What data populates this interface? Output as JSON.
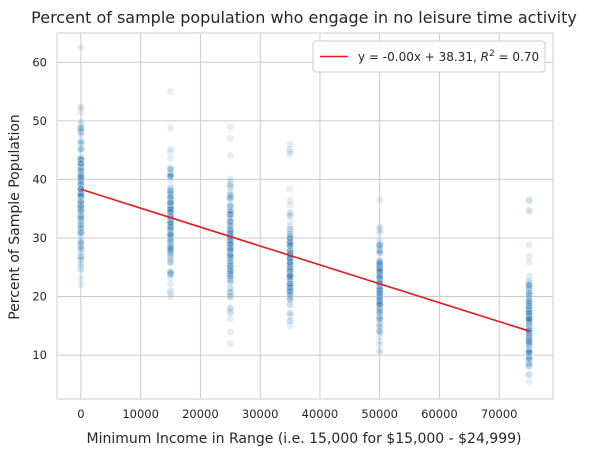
{
  "chart_data": {
    "type": "scatter",
    "title": "Percent of sample population who engage in no leisure time activity",
    "xlabel": "Minimum Income in Range (i.e. 15,000 for $15,000 - $24,999)",
    "ylabel": "Percent of Sample Population",
    "xlim": [
      -4000,
      79000
    ],
    "ylim": [
      2.5,
      65
    ],
    "xticks": [
      0,
      10000,
      20000,
      30000,
      40000,
      50000,
      60000,
      70000
    ],
    "yticks": [
      10,
      20,
      30,
      40,
      50,
      60
    ],
    "grid": true,
    "legend_position": "top-right",
    "series": [
      {
        "kind": "scatter",
        "color": "#1f77b4",
        "alpha": 0.12,
        "groups": [
          {
            "x": 0,
            "min": 22.0,
            "max": 62.5,
            "center": 38,
            "spread": 6
          },
          {
            "x": 15000,
            "min": 20.0,
            "max": 55.0,
            "center": 33.5,
            "spread": 5
          },
          {
            "x": 25000,
            "min": 12.0,
            "max": 49.0,
            "center": 29.5,
            "spread": 5
          },
          {
            "x": 35000,
            "min": 15.0,
            "max": 46.0,
            "center": 25.5,
            "spread": 4
          },
          {
            "x": 50000,
            "min": 10.5,
            "max": 36.5,
            "center": 21.5,
            "spread": 4
          },
          {
            "x": 75000,
            "min": 5.5,
            "max": 36.5,
            "center": 15,
            "spread": 4
          }
        ]
      },
      {
        "kind": "line",
        "name": "y = -0.00x + 38.31, R^2 = 0.70",
        "color": "#e41a1c",
        "x": [
          0,
          75000
        ],
        "y": [
          38.31,
          14.1
        ]
      }
    ]
  },
  "legend": {
    "text_main": "y = -0.00x + 38.31, ",
    "text_r": "R",
    "text_sup": "2",
    "text_end": " = 0.70"
  }
}
